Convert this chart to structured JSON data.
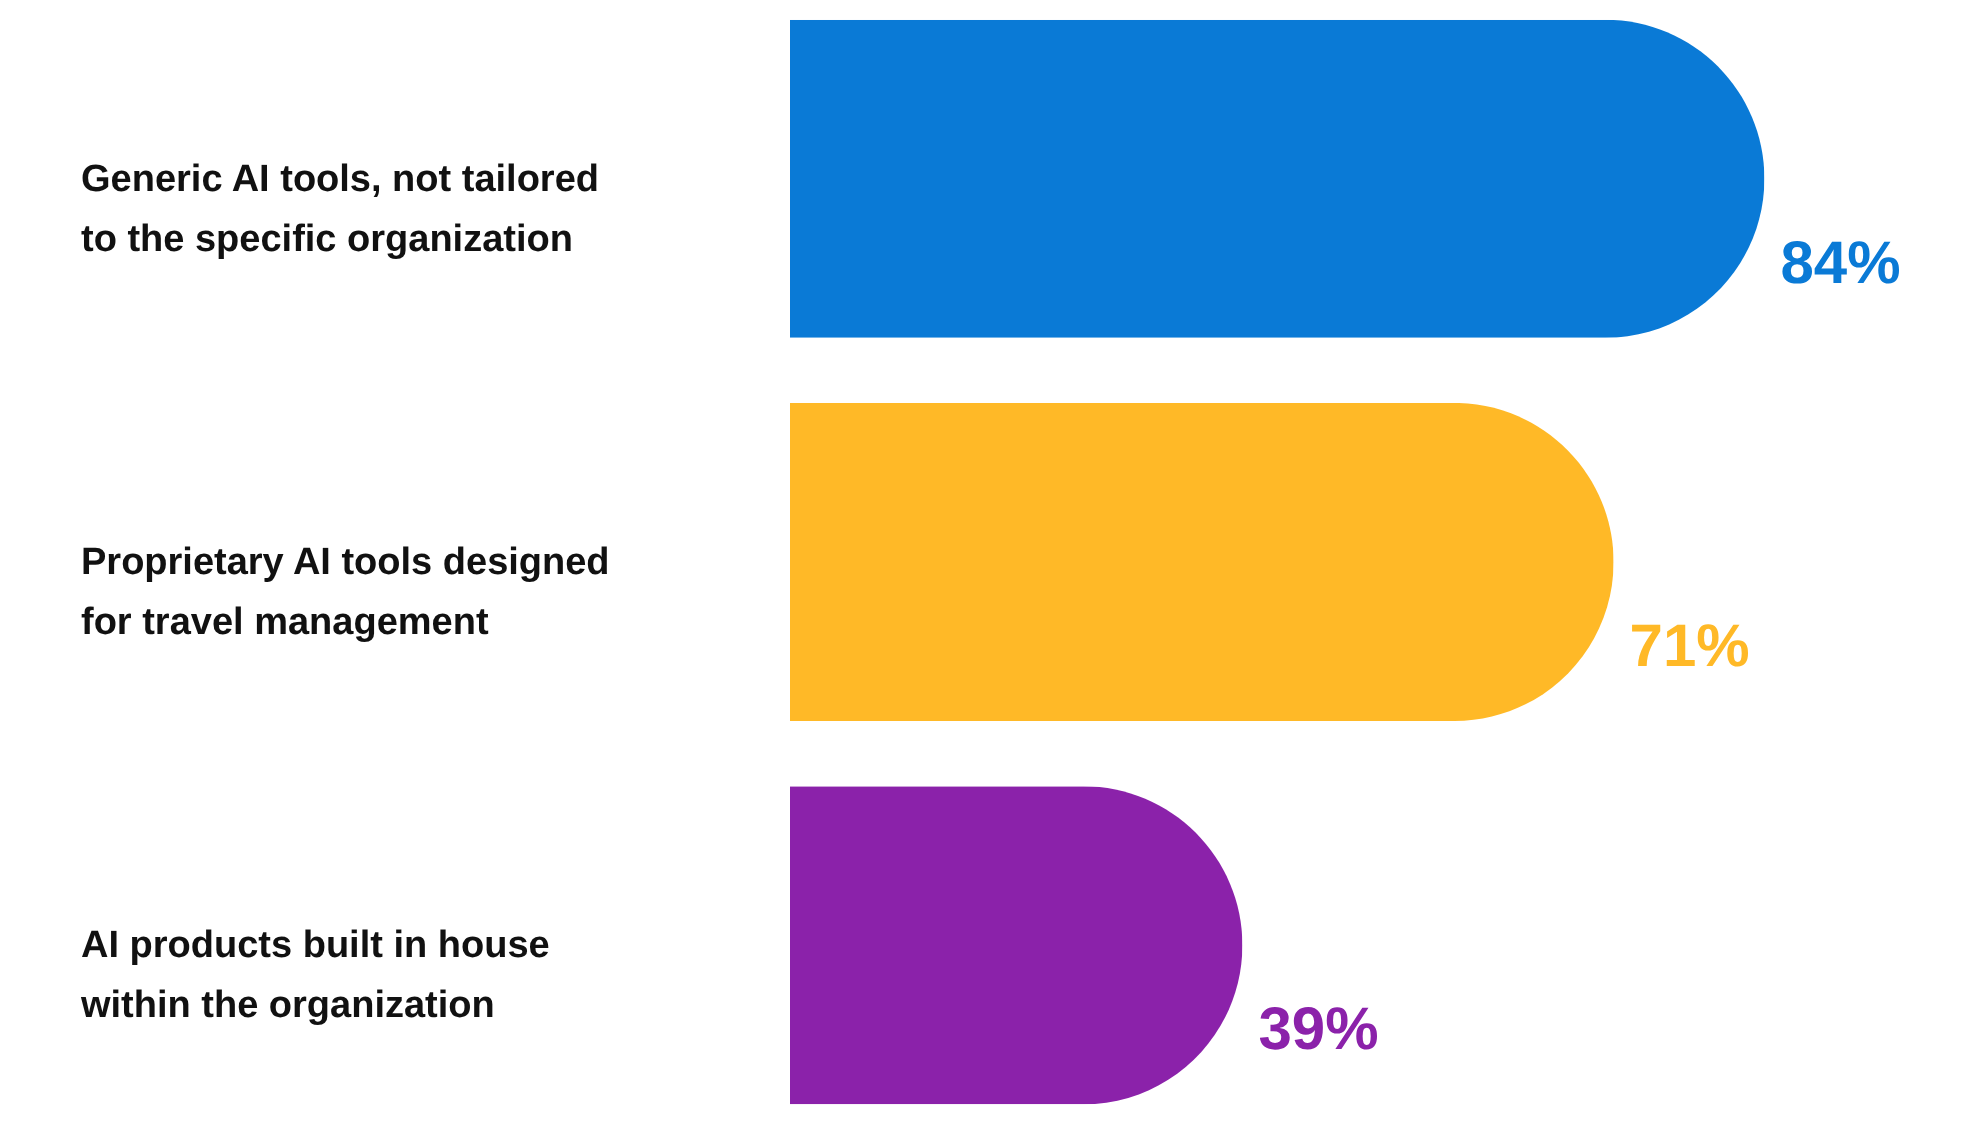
{
  "chart_data": {
    "type": "bar",
    "orientation": "horizontal",
    "categories": [
      "Generic AI tools, not tailored to the specific organization",
      "Proprietary AI tools designed for travel management",
      "AI products built in house within the organization"
    ],
    "values": [
      84,
      71,
      39
    ],
    "value_labels": [
      "84%",
      "71%",
      "39%"
    ],
    "colors": [
      "#0a7ad6",
      "#ffb927",
      "#8b22aa"
    ],
    "tick_labels": "y",
    "grid": false
  }
}
